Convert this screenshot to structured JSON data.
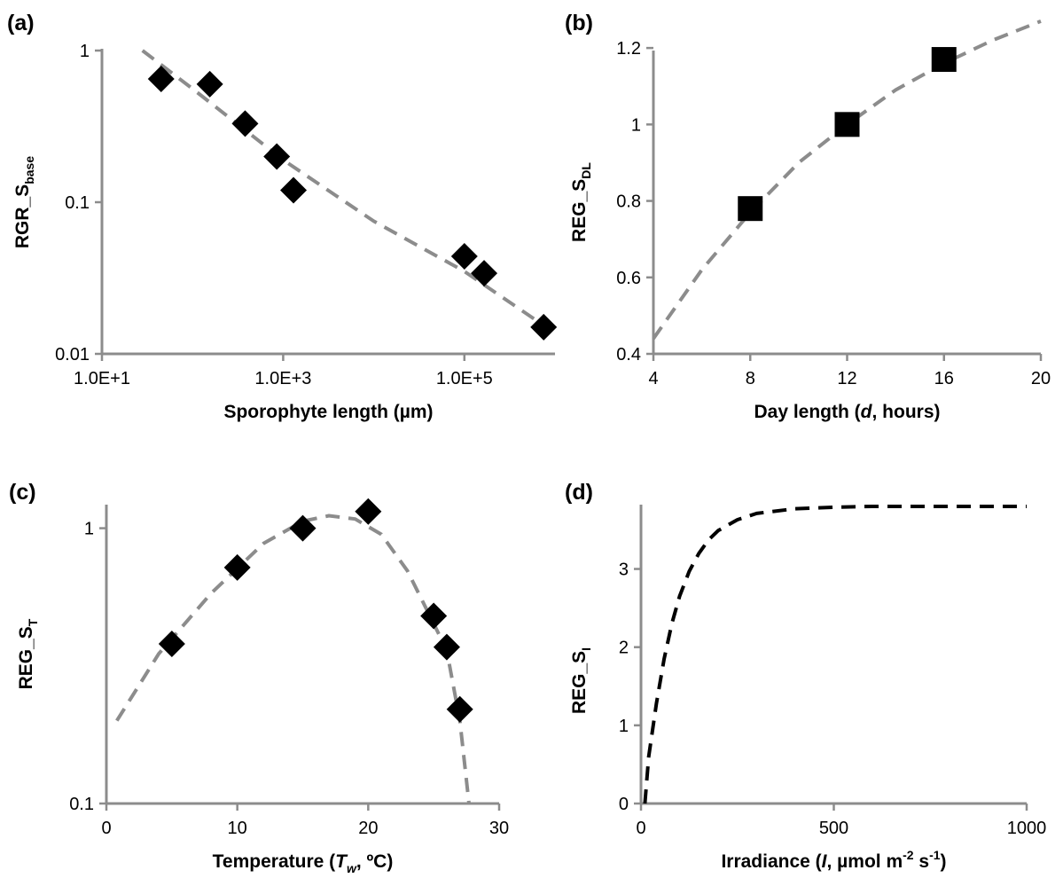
{
  "chart_data": [
    {
      "panel": "(a)",
      "type": "scatter",
      "xscale": "log",
      "yscale": "log",
      "xlim": [
        10,
        1000000
      ],
      "ylim": [
        0.01,
        1
      ],
      "xticks": [
        10,
        1000,
        100000
      ],
      "xtick_labels": [
        "1.0E+1",
        "1.0E+3",
        "1.0E+5"
      ],
      "yticks": [
        0.01,
        0.1,
        1
      ],
      "ytick_labels": [
        "0.01",
        "0.1",
        "1"
      ],
      "xlabel": "Sporophyte length (µm)",
      "ylabel": "RGR_S",
      "ylabel_sub": "base",
      "points": {
        "marker": "diamond",
        "color": "#000000",
        "x": [
          45,
          155,
          380,
          850,
          1300,
          100000,
          165000,
          750000
        ],
        "y": [
          0.65,
          0.6,
          0.33,
          0.2,
          0.12,
          0.044,
          0.034,
          0.015
        ]
      },
      "fit": {
        "style": "dashed",
        "color": "#8c8c8c",
        "x": [
          28,
          100,
          1000,
          10000,
          100000,
          800000
        ],
        "y": [
          1.0,
          0.56,
          0.19,
          0.075,
          0.035,
          0.015
        ]
      }
    },
    {
      "panel": "(b)",
      "type": "scatter",
      "xlim": [
        4,
        20
      ],
      "ylim": [
        0.4,
        1.3
      ],
      "xticks": [
        4,
        8,
        12,
        16,
        20
      ],
      "xtick_labels": [
        "4",
        "8",
        "12",
        "16",
        "20"
      ],
      "yticks": [
        0.4,
        0.6,
        0.8,
        1.0,
        1.2
      ],
      "ytick_labels": [
        "0.4",
        "0.6",
        "0.8",
        "1",
        "1.2"
      ],
      "xlabel_parts": [
        "Day length (",
        "d",
        ", hours)"
      ],
      "ylabel": "REG_S",
      "ylabel_sub": "DL",
      "points": {
        "marker": "square",
        "color": "#000000",
        "x": [
          8,
          12,
          16
        ],
        "y": [
          0.78,
          1.0,
          1.17
        ]
      },
      "fit": {
        "style": "dashed",
        "color": "#8c8c8c",
        "x": [
          4,
          6,
          8,
          10,
          12,
          14,
          16,
          18,
          20
        ],
        "y": [
          0.44,
          0.62,
          0.77,
          0.9,
          1.0,
          1.09,
          1.16,
          1.22,
          1.27
        ]
      }
    },
    {
      "panel": "(c)",
      "type": "scatter",
      "yscale": "log",
      "xlim": [
        0,
        30
      ],
      "ylim": [
        0.1,
        1.2
      ],
      "xticks": [
        0,
        10,
        20,
        30
      ],
      "xtick_labels": [
        "0",
        "10",
        "20",
        "30"
      ],
      "yticks": [
        0.1,
        1
      ],
      "ytick_labels": [
        "0.1",
        "1"
      ],
      "xlabel_parts": [
        "Temperature (",
        "T",
        "w",
        ", ºC)"
      ],
      "ylabel": "REG_S",
      "ylabel_sub": "T",
      "points": {
        "marker": "diamond",
        "color": "#000000",
        "x": [
          5,
          10,
          15,
          20,
          25,
          26,
          27
        ],
        "y": [
          0.38,
          0.72,
          1.0,
          1.15,
          0.48,
          0.37,
          0.22
        ]
      },
      "fit": {
        "style": "dashed",
        "color": "#8c8c8c",
        "x": [
          0.8,
          4,
          8,
          12,
          15,
          17,
          19,
          21,
          23,
          25,
          26,
          27,
          27.7
        ],
        "y": [
          0.2,
          0.35,
          0.58,
          0.88,
          1.06,
          1.11,
          1.08,
          0.95,
          0.7,
          0.45,
          0.36,
          0.2,
          0.1
        ]
      }
    },
    {
      "panel": "(d)",
      "type": "line",
      "xlim": [
        0,
        1000
      ],
      "ylim": [
        0,
        3.8
      ],
      "xticks": [
        0,
        500,
        1000
      ],
      "xtick_labels": [
        "0",
        "500",
        "1000"
      ],
      "yticks": [
        0,
        1,
        2,
        3
      ],
      "ytick_labels": [
        "0",
        "1",
        "2",
        "3"
      ],
      "xlabel_parts": [
        "Irradiance (",
        "I",
        ", µmol m",
        "-2",
        " s",
        "-1",
        ")"
      ],
      "ylabel": "REG_S",
      "ylabel_sub": "I",
      "series": [
        {
          "style": "dashed",
          "color": "#000000",
          "x": [
            10,
            20,
            40,
            60,
            80,
            100,
            125,
            150,
            175,
            200,
            250,
            300,
            400,
            500,
            600,
            700,
            800,
            900,
            1000
          ],
          "y": [
            0.0,
            0.6,
            1.28,
            1.85,
            2.3,
            2.65,
            2.97,
            3.2,
            3.37,
            3.49,
            3.63,
            3.71,
            3.77,
            3.79,
            3.8,
            3.8,
            3.8,
            3.8,
            3.8
          ]
        }
      ]
    }
  ]
}
